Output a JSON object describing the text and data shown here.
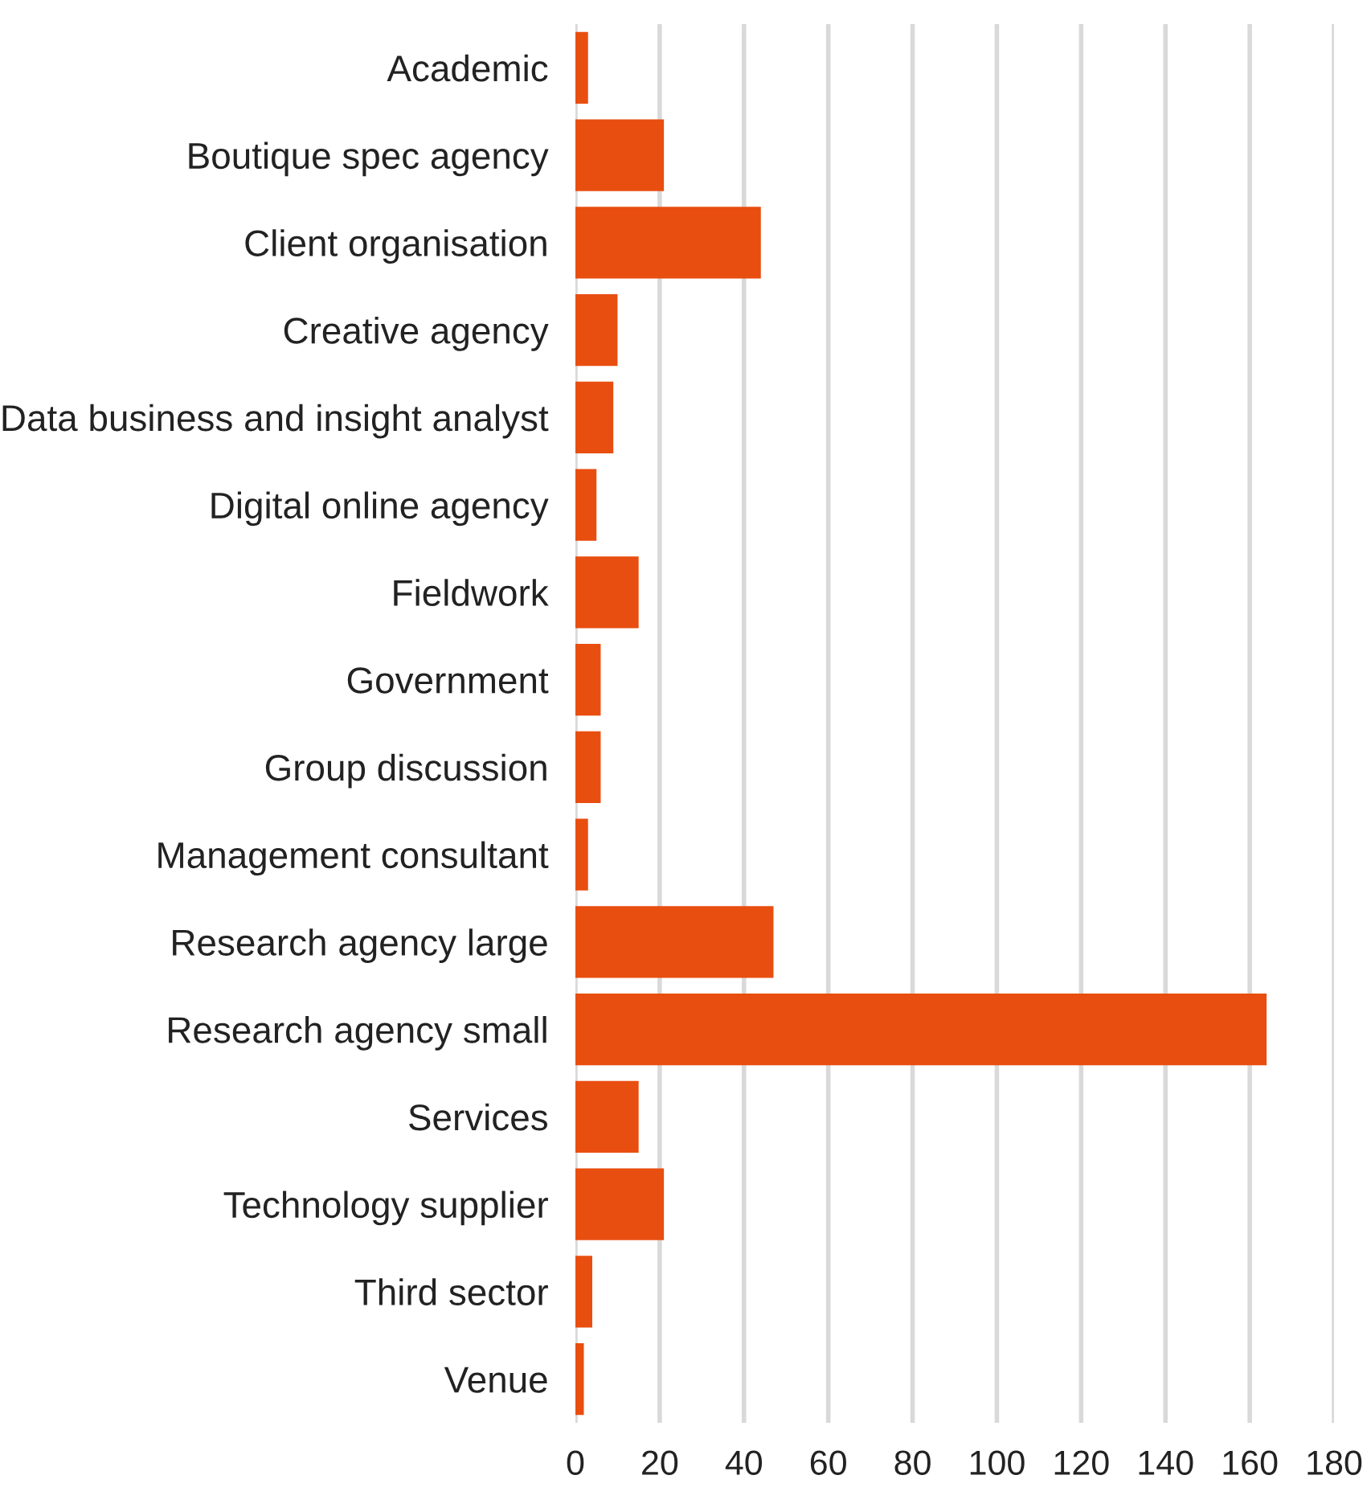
{
  "chart_data": {
    "type": "bar",
    "orientation": "horizontal",
    "categories": [
      "Academic",
      "Boutique spec agency",
      "Client organisation",
      "Creative agency",
      "Data business and insight analyst",
      "Digital online agency",
      "Fieldwork",
      "Government",
      "Group discussion",
      "Management consultant",
      "Research agency large",
      "Research agency small",
      "Services",
      "Technology supplier",
      "Third sector",
      "Venue"
    ],
    "values": [
      3,
      21,
      44,
      10,
      9,
      5,
      15,
      6,
      6,
      3,
      47,
      164,
      15,
      21,
      4,
      2
    ],
    "color": "#e84e10",
    "xlim": [
      0,
      180
    ],
    "xticks": [
      0,
      20,
      40,
      60,
      80,
      100,
      120,
      140,
      160,
      180
    ],
    "grid": "x",
    "legend": false
  }
}
